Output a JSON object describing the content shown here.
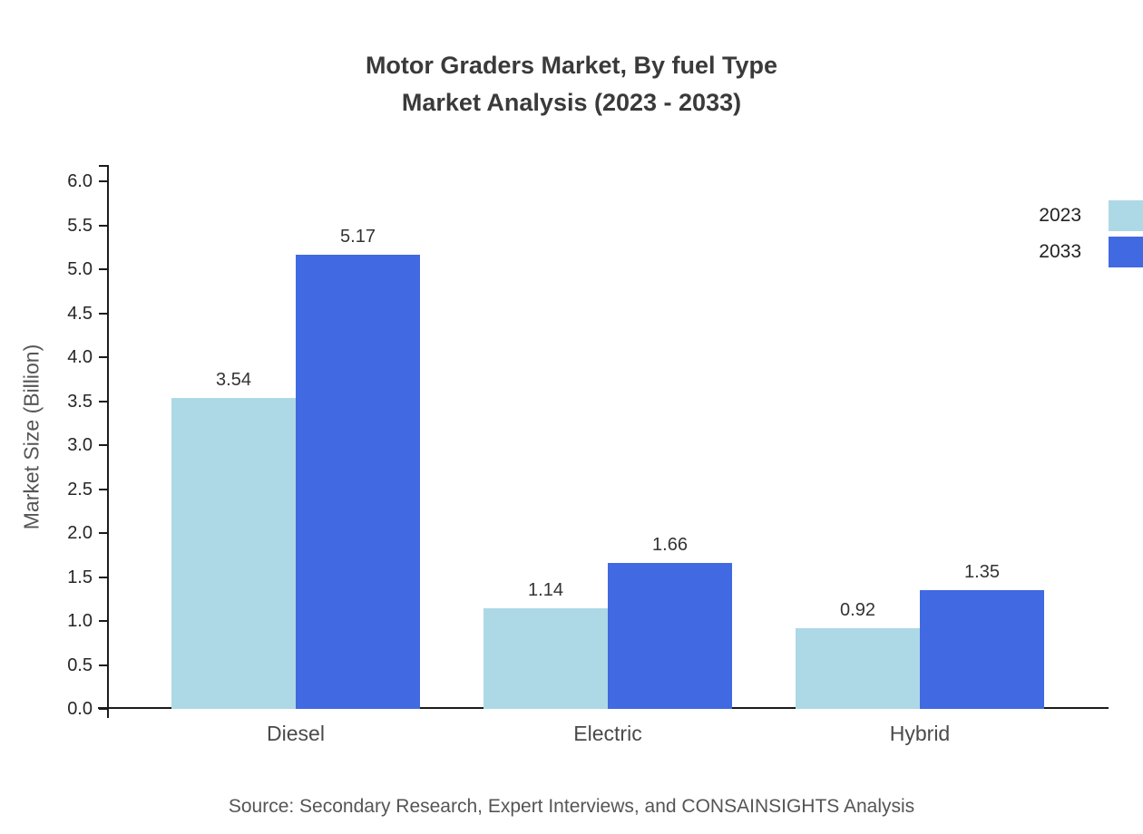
{
  "title": {
    "line1": "Motor Graders Market, By fuel Type",
    "line2": "Market Analysis (2023 - 2033)"
  },
  "source": "Source: Secondary Research, Expert Interviews, and CONSAINSIGHTS Analysis",
  "chart_data": {
    "type": "bar",
    "title": "Motor Graders Market, By fuel Type Market Analysis (2023 - 2033)",
    "categories": [
      "Diesel",
      "Electric",
      "Hybrid"
    ],
    "series": [
      {
        "name": "2023",
        "color": "#add8e6",
        "values": [
          3.54,
          1.14,
          0.92
        ]
      },
      {
        "name": "2033",
        "color": "#4169e1",
        "values": [
          5.17,
          1.66,
          1.35
        ]
      }
    ],
    "xlabel": "",
    "ylabel": "Market Size (Billion)",
    "ylim": [
      0.0,
      6.0
    ],
    "ytick_step": 0.5,
    "grid": false,
    "legend_position": "top-right",
    "value_labels": true
  }
}
